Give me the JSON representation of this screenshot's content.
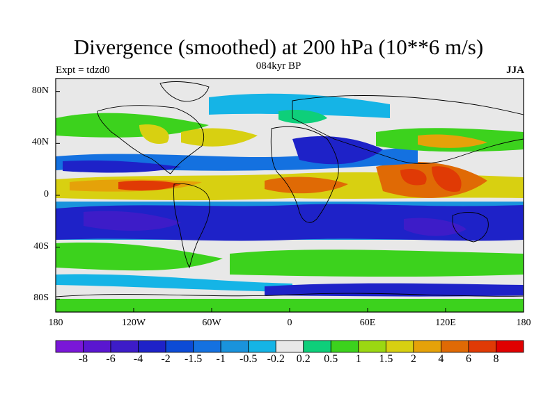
{
  "title": "Divergence (smoothed) at 200 hPa (10**6 m/s)",
  "subtitle": "084kyr BP",
  "left_label": "Expt = tdzd0",
  "right_label": "JJA",
  "lat_ticks": [
    "80N",
    "40N",
    "0",
    "40S",
    "80S"
  ],
  "lat_values": [
    80,
    40,
    0,
    -40,
    -80
  ],
  "lon_ticks": [
    "180",
    "120W",
    "60W",
    "0",
    "60E",
    "120E",
    "180"
  ],
  "lon_values": [
    -180,
    -120,
    -60,
    0,
    60,
    120,
    180
  ],
  "colorbar": {
    "labels": [
      "-8",
      "-6",
      "-4",
      "-2",
      "-1.5",
      "-1",
      "-0.5",
      "-0.2",
      "0.2",
      "0.5",
      "1",
      "1.5",
      "2",
      "4",
      "6",
      "8"
    ],
    "colors": [
      "#7a17d8",
      "#5a16d0",
      "#3d1cc8",
      "#1e22c8",
      "#0c4bd6",
      "#1471e0",
      "#1a93dc",
      "#15b4e6",
      "#e8e8e8",
      "#0ecf7a",
      "#3cd21d",
      "#9bd812",
      "#d8d011",
      "#e5a209",
      "#e06a05",
      "#e03a05",
      "#e00000"
    ]
  }
}
